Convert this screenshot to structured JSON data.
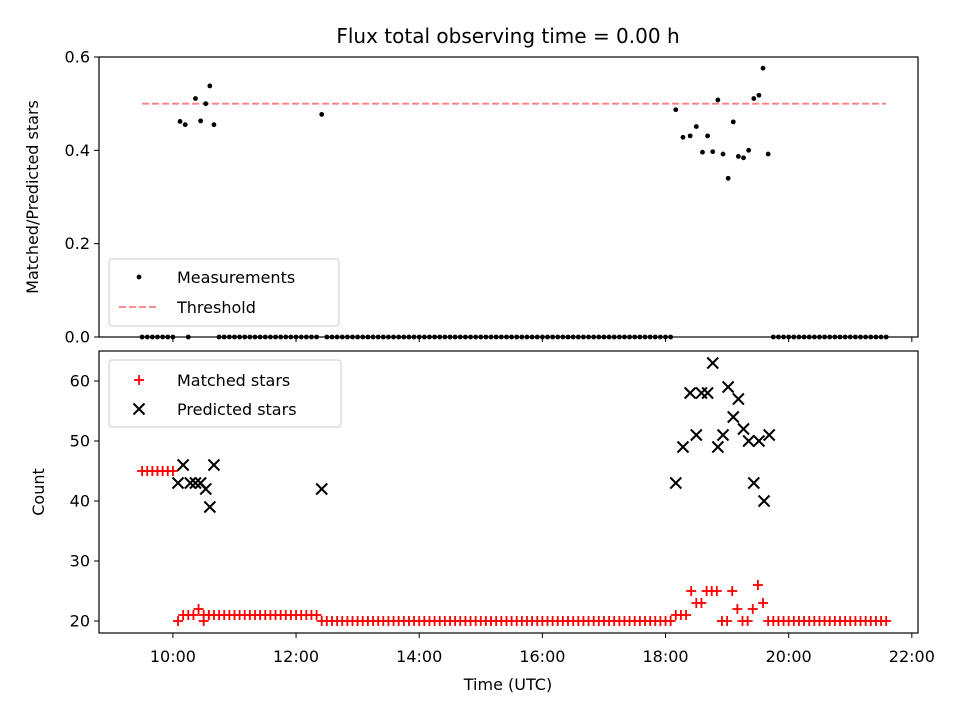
{
  "chart_data": [
    {
      "type": "scatter",
      "title": "Flux total observing time = 0.00 h",
      "xlabel": "",
      "ylabel": "Matched/Predicted stars",
      "ylim": [
        0,
        0.6
      ],
      "yticks": [
        "0.0",
        "0.2",
        "0.4",
        "0.6"
      ],
      "xlim_hours": [
        8.8,
        22.1
      ],
      "legend": {
        "placement": "lower-left",
        "entries": [
          {
            "label": "Measurements",
            "marker": "dot",
            "color": "#000000"
          },
          {
            "label": "Threshold",
            "marker": "dashed-line",
            "color": "#ff7f7f"
          }
        ]
      },
      "threshold": {
        "value": 0.5,
        "x_start": "09:30",
        "x_end": "21:35",
        "color": "#ff7f7f"
      },
      "series": [
        {
          "name": "Measurements",
          "color": "#000000",
          "points": [
            [
              "10:07",
              0.462
            ],
            [
              "10:12",
              0.455
            ],
            [
              "10:22",
              0.511
            ],
            [
              "10:27",
              0.463
            ],
            [
              "10:32",
              0.5
            ],
            [
              "10:36",
              0.538
            ],
            [
              "10:40",
              0.455
            ],
            [
              "12:25",
              0.477
            ],
            [
              "18:10",
              0.487
            ],
            [
              "18:17",
              0.428
            ],
            [
              "18:24",
              0.431
            ],
            [
              "18:30",
              0.451
            ],
            [
              "18:36",
              0.396
            ],
            [
              "18:41",
              0.431
            ],
            [
              "18:46",
              0.397
            ],
            [
              "18:51",
              0.508
            ],
            [
              "18:56",
              0.392
            ],
            [
              "19:01",
              0.34
            ],
            [
              "19:06",
              0.461
            ],
            [
              "19:11",
              0.387
            ],
            [
              "19:16",
              0.384
            ],
            [
              "19:21",
              0.4
            ],
            [
              "19:26",
              0.511
            ],
            [
              "19:31",
              0.518
            ],
            [
              "19:35",
              0.576
            ],
            [
              "19:40",
              0.392
            ]
          ],
          "zero_runs": [
            {
              "start": "09:30",
              "end": "10:00",
              "step_min": 5
            },
            {
              "start": "10:15",
              "end": "10:15",
              "step_min": 5
            },
            {
              "start": "10:45",
              "end": "12:20",
              "step_min": 5
            },
            {
              "start": "12:30",
              "end": "18:00",
              "step_min": 5
            },
            {
              "start": "18:05",
              "end": "18:05",
              "step_min": 5
            },
            {
              "start": "19:45",
              "end": "21:35",
              "step_min": 5
            }
          ]
        }
      ]
    },
    {
      "type": "scatter",
      "title": "",
      "xlabel": "Time (UTC)",
      "ylabel": "Count",
      "ylim": [
        18,
        65
      ],
      "yticks": [
        "20",
        "30",
        "40",
        "50",
        "60"
      ],
      "xticks": [
        "10:00",
        "12:00",
        "14:00",
        "16:00",
        "18:00",
        "20:00",
        "22:00"
      ],
      "xlim_hours": [
        8.8,
        22.1
      ],
      "legend": {
        "placement": "top-left",
        "entries": [
          {
            "label": "Matched stars",
            "marker": "plus",
            "color": "#ff0000"
          },
          {
            "label": "Predicted stars",
            "marker": "x",
            "color": "#000000"
          }
        ]
      },
      "series": [
        {
          "name": "Matched stars",
          "color": "#ff0000",
          "runs": [
            {
              "start": "09:30",
              "end": "10:00",
              "step_min": 5,
              "value": 45
            },
            {
              "start": "10:30",
              "end": "12:20",
              "step_min": 5,
              "value": 21
            },
            {
              "start": "12:25",
              "end": "18:00",
              "step_min": 5,
              "value": 20
            },
            {
              "start": "19:40",
              "end": "21:35",
              "step_min": 5,
              "value": 20
            }
          ],
          "points": [
            [
              "10:05",
              20
            ],
            [
              "10:10",
              21
            ],
            [
              "10:15",
              21
            ],
            [
              "10:20",
              21
            ],
            [
              "10:25",
              22
            ],
            [
              "10:30",
              20
            ],
            [
              "10:35",
              21
            ],
            [
              "18:05",
              20
            ],
            [
              "18:10",
              21
            ],
            [
              "18:15",
              21
            ],
            [
              "18:20",
              21
            ],
            [
              "18:25",
              25
            ],
            [
              "18:30",
              23
            ],
            [
              "18:35",
              23
            ],
            [
              "18:40",
              25
            ],
            [
              "18:45",
              25
            ],
            [
              "18:50",
              25
            ],
            [
              "18:55",
              20
            ],
            [
              "19:00",
              20
            ],
            [
              "19:05",
              25
            ],
            [
              "19:10",
              22
            ],
            [
              "19:15",
              20
            ],
            [
              "19:20",
              20
            ],
            [
              "19:25",
              22
            ],
            [
              "19:30",
              26
            ],
            [
              "19:35",
              23
            ]
          ]
        },
        {
          "name": "Predicted stars",
          "color": "#000000",
          "points": [
            [
              "10:05",
              43
            ],
            [
              "10:10",
              46
            ],
            [
              "10:17",
              43
            ],
            [
              "10:22",
              43
            ],
            [
              "10:27",
              43
            ],
            [
              "10:32",
              42
            ],
            [
              "10:36",
              39
            ],
            [
              "10:40",
              46
            ],
            [
              "12:25",
              42
            ],
            [
              "18:10",
              43
            ],
            [
              "18:17",
              49
            ],
            [
              "18:24",
              58
            ],
            [
              "18:30",
              51
            ],
            [
              "18:35",
              58
            ],
            [
              "18:41",
              58
            ],
            [
              "18:46",
              63
            ],
            [
              "18:51",
              49
            ],
            [
              "18:56",
              51
            ],
            [
              "19:01",
              59
            ],
            [
              "19:06",
              54
            ],
            [
              "19:11",
              57
            ],
            [
              "19:16",
              52
            ],
            [
              "19:21",
              50
            ],
            [
              "19:26",
              43
            ],
            [
              "19:31",
              50
            ],
            [
              "19:36",
              40
            ],
            [
              "19:41",
              51
            ]
          ]
        }
      ]
    }
  ]
}
